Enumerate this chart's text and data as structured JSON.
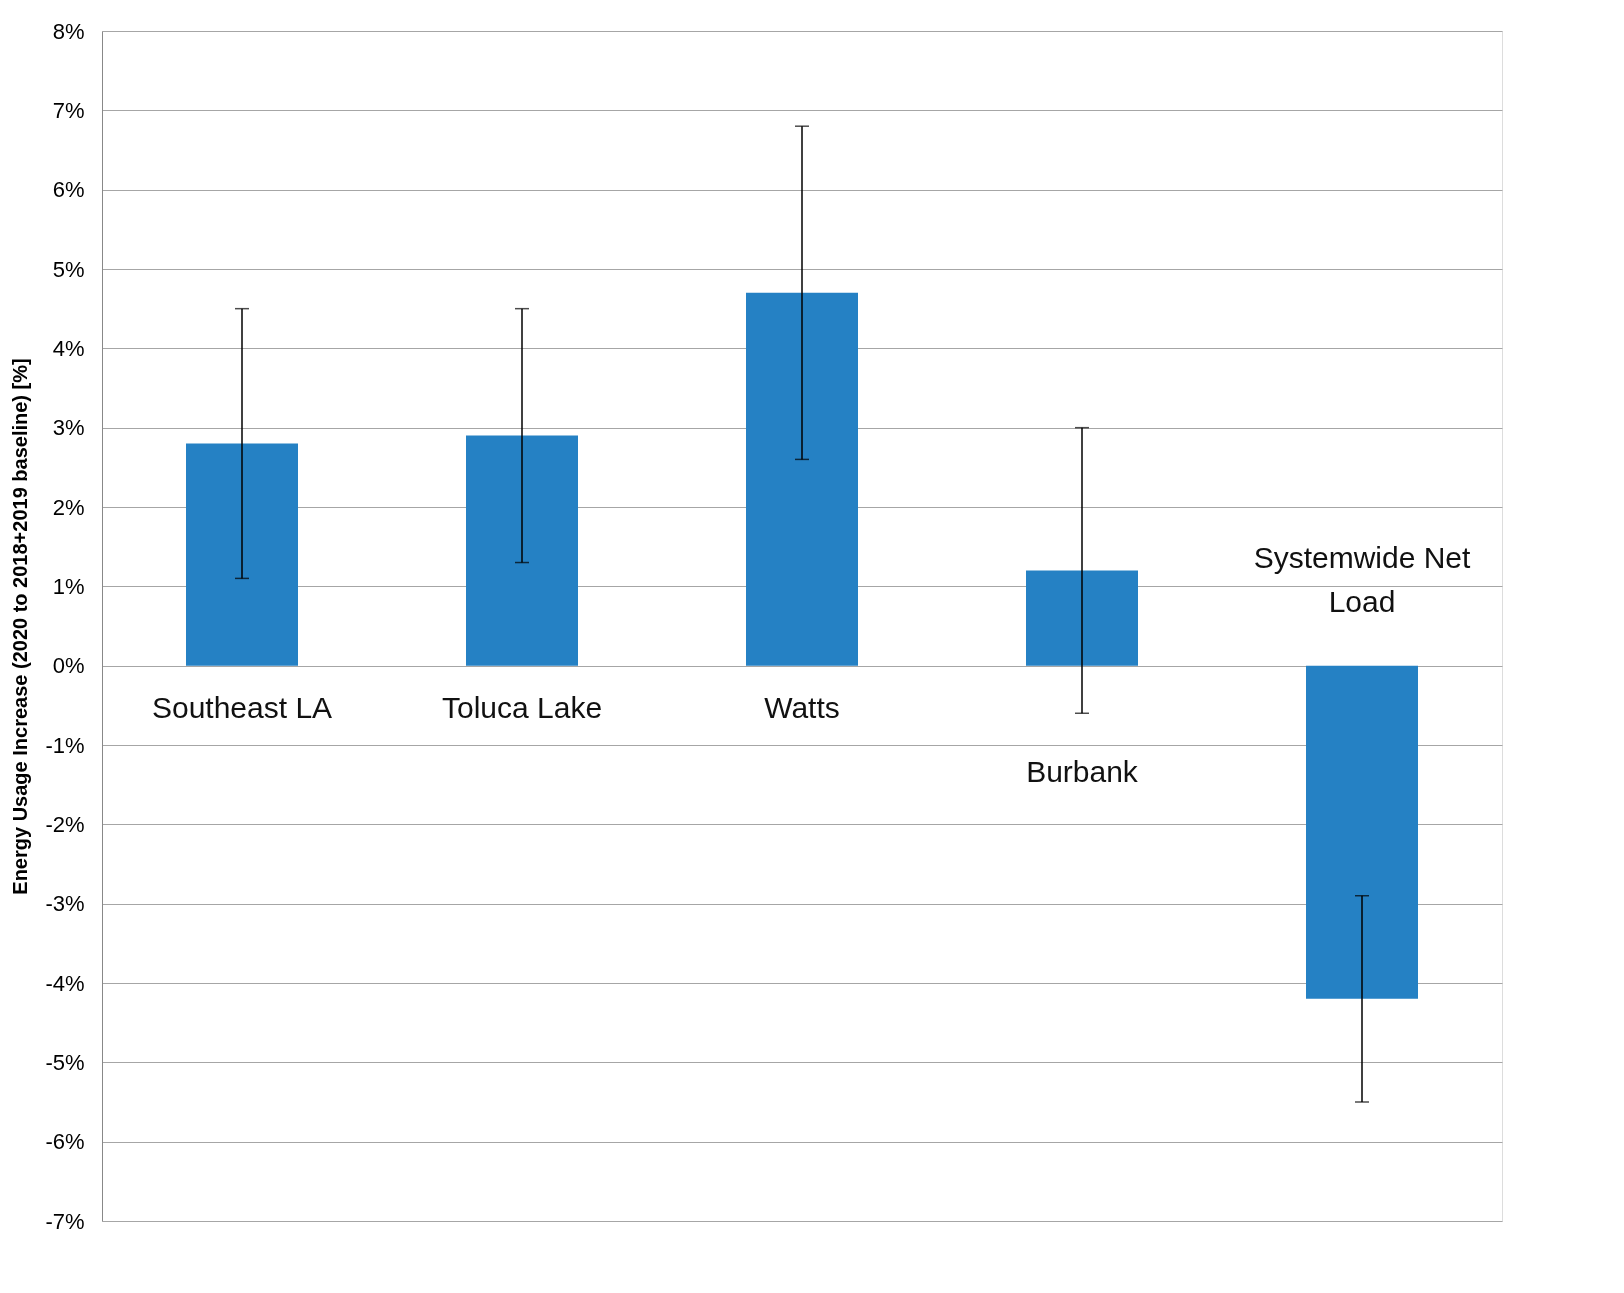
{
  "chart_data": {
    "type": "bar",
    "ylabel": "Energy Usage Increase (2020 to 2018+2019 baseline) [%]",
    "categories": [
      "Southeast LA",
      "Toluca Lake",
      "Watts",
      "Burbank",
      "Systemwide Net Load"
    ],
    "values": [
      2.8,
      2.9,
      4.7,
      1.2,
      -4.2
    ],
    "color": "#2581c4",
    "errors": [
      [
        1.1,
        4.5
      ],
      [
        1.3,
        4.5
      ],
      [
        2.6,
        6.8
      ],
      [
        -0.6,
        3.0
      ],
      [
        -5.5,
        -2.9
      ]
    ],
    "ylim": [
      -7,
      8
    ],
    "yticks": [
      {
        "value": -7,
        "label": "-7%"
      },
      {
        "value": -6,
        "label": "-6%"
      },
      {
        "value": -5,
        "label": "-5%"
      },
      {
        "value": -4,
        "label": "-4%"
      },
      {
        "value": -3,
        "label": "-3%"
      },
      {
        "value": -2,
        "label": "-2%"
      },
      {
        "value": -1,
        "label": "-1%"
      },
      {
        "value": 0,
        "label": "0%"
      },
      {
        "value": 1,
        "label": "1%"
      },
      {
        "value": 2,
        "label": "2%"
      },
      {
        "value": 3,
        "label": "3%"
      },
      {
        "value": 4,
        "label": "4%"
      },
      {
        "value": 5,
        "label": "5%"
      },
      {
        "value": 6,
        "label": "6%"
      },
      {
        "value": 7,
        "label": "7%"
      },
      {
        "value": 8,
        "label": "8%"
      }
    ],
    "grid": "y",
    "tick_labels": "y"
  }
}
